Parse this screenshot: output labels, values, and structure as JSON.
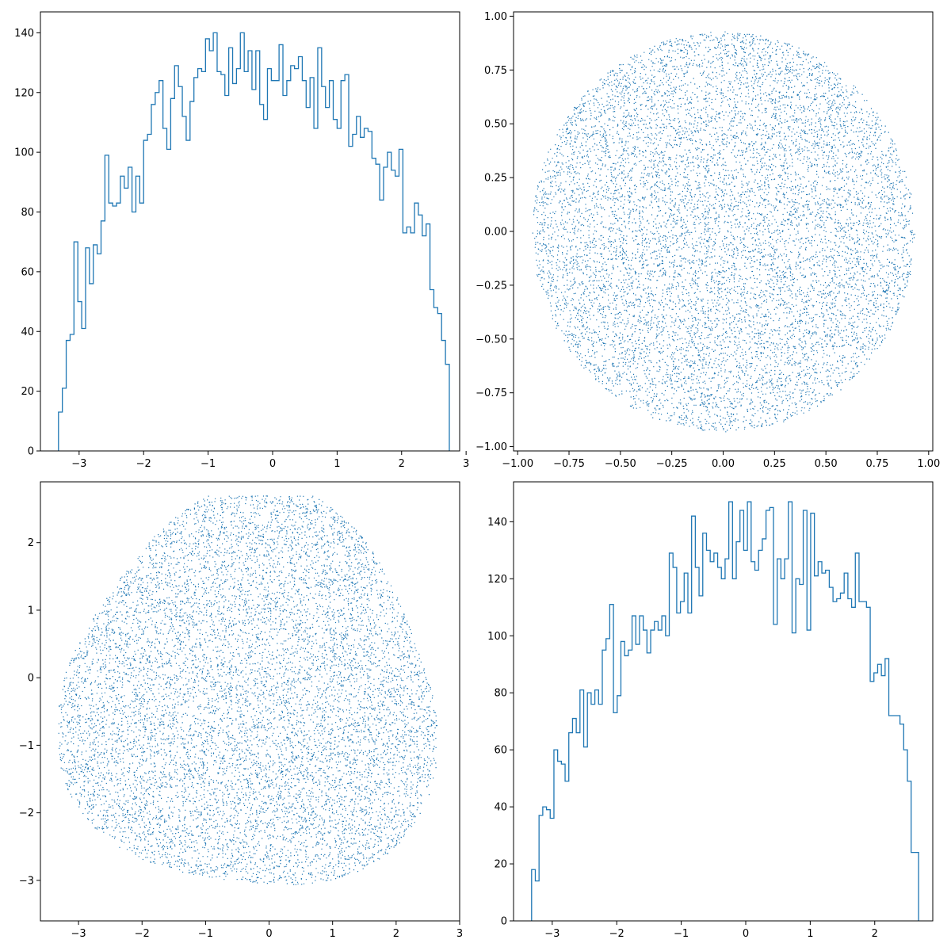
{
  "chart_data": [
    {
      "type": "histogram",
      "histtype": "step",
      "color": "#1f77b4",
      "xlim": [
        -3.6,
        2.9
      ],
      "ylim": [
        0,
        147
      ],
      "bin_start": -3.32,
      "bin_end": 2.74,
      "counts": [
        13,
        21,
        37,
        39,
        70,
        50,
        41,
        68,
        56,
        69,
        66,
        77,
        99,
        83,
        82,
        83,
        92,
        88,
        95,
        80,
        92,
        83,
        104,
        106,
        116,
        120,
        124,
        108,
        101,
        118,
        129,
        122,
        112,
        104,
        117,
        125,
        128,
        127,
        138,
        134,
        140,
        127,
        126,
        119,
        135,
        123,
        128,
        140,
        127,
        134,
        121,
        134,
        116,
        111,
        128,
        124,
        124,
        136,
        119,
        124,
        129,
        128,
        132,
        124,
        115,
        125,
        108,
        135,
        122,
        115,
        124,
        111,
        108,
        124,
        126,
        102,
        106,
        112,
        105,
        108,
        107,
        98,
        96,
        84,
        95,
        100,
        94,
        92,
        101,
        73,
        75,
        73,
        83,
        79,
        72,
        76,
        54,
        48,
        46,
        37,
        29
      ],
      "xticks": [
        -3,
        -2,
        -1,
        0,
        1,
        2,
        3
      ],
      "xtick_labels": [
        "−3",
        "−2",
        "−1",
        "0",
        "1",
        "2",
        "3"
      ],
      "yticks": [
        0,
        20,
        40,
        60,
        80,
        100,
        120,
        140
      ],
      "ytick_labels": [
        "0",
        "20",
        "40",
        "60",
        "80",
        "100",
        "120",
        "140"
      ]
    },
    {
      "type": "scatter",
      "color": "#1f77b4",
      "marker": "pixel",
      "n_points": 10000,
      "distribution": "uniform disk, radius 0.93, centred at (0, 0)",
      "xlim": [
        -1.02,
        1.02
      ],
      "ylim": [
        -1.02,
        1.02
      ],
      "xticks": [
        -1.0,
        -0.75,
        -0.5,
        -0.25,
        0.0,
        0.25,
        0.5,
        0.75,
        1.0
      ],
      "xtick_labels": [
        "−1.00",
        "−0.75",
        "−0.50",
        "−0.25",
        "0.00",
        "0.25",
        "0.50",
        "0.75",
        "1.00"
      ],
      "yticks": [
        -1.0,
        -0.75,
        -0.5,
        -0.25,
        0.0,
        0.25,
        0.5,
        0.75,
        1.0
      ],
      "ytick_labels": [
        "−1.00",
        "−0.75",
        "−0.50",
        "−0.25",
        "0.00",
        "0.25",
        "0.50",
        "0.75",
        "1.00"
      ]
    },
    {
      "type": "scatter",
      "color": "#1f77b4",
      "marker": "pixel",
      "n_points": 10000,
      "distribution": "uniform rounded-triangle blob, x from -3.32 to 2.74, y from -3.32 to 2.7",
      "xlim": [
        -3.6,
        3.0
      ],
      "ylim": [
        -3.6,
        2.9
      ],
      "xticks": [
        -3,
        -2,
        -1,
        0,
        1,
        2,
        3
      ],
      "xtick_labels": [
        "−3",
        "−2",
        "−1",
        "0",
        "1",
        "2",
        "3"
      ],
      "yticks": [
        -3,
        -2,
        -1,
        0,
        1,
        2
      ],
      "ytick_labels": [
        "−3",
        "−2",
        "−1",
        "0",
        "1",
        "2"
      ]
    },
    {
      "type": "histogram",
      "histtype": "step",
      "color": "#1f77b4",
      "xlim": [
        -3.6,
        2.9
      ],
      "ylim": [
        0,
        154
      ],
      "bin_start": -3.32,
      "bin_end": 2.68,
      "counts": [
        18,
        14,
        37,
        40,
        39,
        36,
        60,
        56,
        55,
        49,
        66,
        71,
        66,
        81,
        61,
        80,
        76,
        81,
        76,
        95,
        99,
        111,
        73,
        79,
        98,
        93,
        95,
        107,
        97,
        107,
        102,
        94,
        102,
        105,
        102,
        107,
        100,
        129,
        124,
        108,
        112,
        122,
        108,
        142,
        124,
        114,
        136,
        130,
        126,
        129,
        124,
        120,
        127,
        147,
        120,
        133,
        144,
        130,
        147,
        126,
        123,
        130,
        134,
        144,
        145,
        104,
        127,
        120,
        127,
        147,
        101,
        120,
        118,
        144,
        102,
        143,
        121,
        126,
        122,
        123,
        117,
        112,
        113,
        115,
        122,
        113,
        110,
        129,
        112,
        112,
        110,
        84,
        87,
        90,
        86,
        92,
        72,
        72,
        72,
        69,
        60,
        49,
        24,
        24
      ],
      "xticks": [
        -3,
        -2,
        -1,
        0,
        1,
        2
      ],
      "xtick_labels": [
        "−3",
        "−2",
        "−1",
        "0",
        "1",
        "2"
      ],
      "yticks": [
        0,
        20,
        40,
        60,
        80,
        100,
        120,
        140
      ],
      "ytick_labels": [
        "0",
        "20",
        "40",
        "60",
        "80",
        "100",
        "120",
        "140"
      ]
    }
  ]
}
